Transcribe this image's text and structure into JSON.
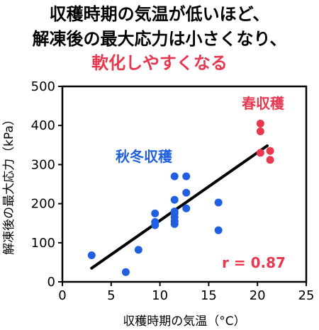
{
  "header": {
    "line1": "収穫時期の気温が低いほど、",
    "line2": "解凍後の最大応力は小さくなり、",
    "line3": "軟化しやすくなる",
    "line3_color": "#e8384f"
  },
  "chart_data": {
    "type": "scatter",
    "xlabel": "収穫時期の気温（°C）",
    "ylabel": "解凍後の最大応力（kPa）",
    "xlim": [
      0,
      25
    ],
    "ylim": [
      0,
      500
    ],
    "xticks": [
      "0",
      "5",
      "10",
      "15",
      "20",
      "25"
    ],
    "yticks": [
      "0",
      "100",
      "200",
      "300",
      "400",
      "500"
    ],
    "grid": false,
    "series": [
      {
        "name": "秋冬収穫",
        "color": "#1f5fe0",
        "points": [
          [
            3.0,
            68
          ],
          [
            6.5,
            25
          ],
          [
            7.8,
            82
          ],
          [
            9.5,
            175
          ],
          [
            9.5,
            153
          ],
          [
            9.5,
            145
          ],
          [
            11.5,
            270
          ],
          [
            11.5,
            210
          ],
          [
            11.5,
            180
          ],
          [
            11.5,
            175
          ],
          [
            11.5,
            165
          ],
          [
            11.5,
            155
          ],
          [
            11.5,
            148
          ],
          [
            12.7,
            270
          ],
          [
            12.7,
            228
          ],
          [
            12.7,
            188
          ],
          [
            16.0,
            203
          ],
          [
            16.0,
            132
          ]
        ]
      },
      {
        "name": "春収穫",
        "color": "#e8384f",
        "points": [
          [
            20.3,
            405
          ],
          [
            20.3,
            385
          ],
          [
            20.3,
            330
          ],
          [
            21.3,
            335
          ],
          [
            21.3,
            312
          ]
        ]
      }
    ],
    "trendline": {
      "color": "#000000",
      "from": [
        3.0,
        35
      ],
      "to": [
        21.0,
        348
      ]
    },
    "annotations": [
      {
        "text": "r = 0.87",
        "color": "#e8384f"
      }
    ]
  }
}
